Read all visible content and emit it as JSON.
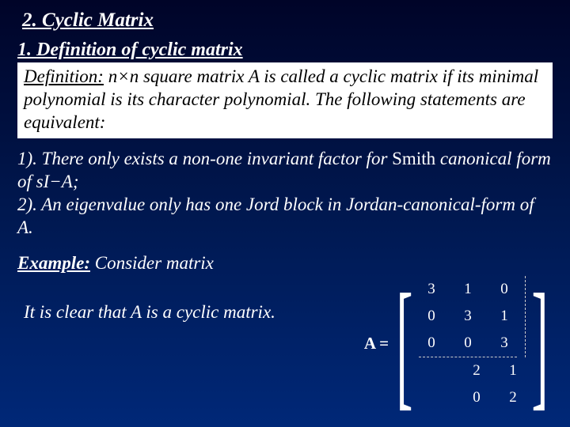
{
  "section_title": "2. Cyclic Matrix",
  "sub_title": "1. Definition of cyclic matrix",
  "definition": {
    "label": "Definition:",
    "body": "n×n square matrix A is called a cyclic matrix if its minimal polynomial is its character polynomial. The following statements are equivalent:"
  },
  "statements": {
    "s1_a": "1). There only exists a non-one invariant factor for ",
    "s1_smith": "Smith",
    "s1_b": " canonical form of s",
    "s1_c": "I−A;",
    "s2": "2). An eigenvalue only has one Jord block in Jordan-canonical-form of A."
  },
  "example": {
    "label": "Example:",
    "rest": " Consider matrix",
    "conclusion": "It is clear that A is a cyclic matrix."
  },
  "matrix": {
    "label": "A =",
    "upper_rows": [
      [
        "3",
        "1",
        "0"
      ],
      [
        "0",
        "3",
        "1"
      ],
      [
        "0",
        "0",
        "3"
      ]
    ],
    "lower_rows": [
      [
        "2",
        "1"
      ],
      [
        "0",
        "2"
      ]
    ],
    "text_color": "#ffffff",
    "dash_color": "#cccccc",
    "font_size": 19
  },
  "colors": {
    "bg_top": "#000428",
    "bg_bottom": "#002878",
    "text": "#ffffff",
    "box_bg": "#ffffff",
    "box_text": "#000000"
  }
}
